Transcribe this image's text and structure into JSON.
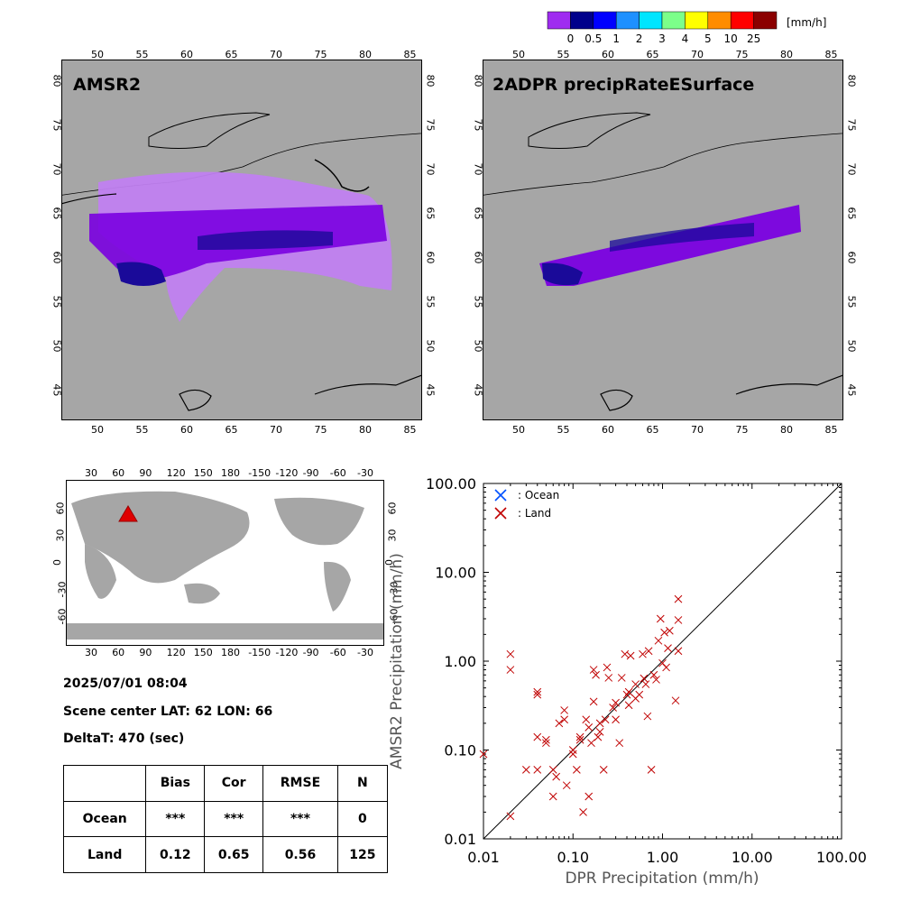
{
  "colorbar": {
    "unit": "[mm/h]",
    "labels": [
      "0",
      "0.5",
      "1",
      "2",
      "3",
      "4",
      "5",
      "10",
      "25"
    ],
    "colors": [
      "#9f2cf0",
      "#00008b",
      "#0000ff",
      "#1e90ff",
      "#00e5ff",
      "#7cff8a",
      "#ffff00",
      "#ff8c00",
      "#ff0000",
      "#8b0000"
    ]
  },
  "maps": {
    "left_title": "AMSR2",
    "right_title": "2ADPR precipRateESurface",
    "lon_ticks": [
      "50",
      "55",
      "60",
      "65",
      "70",
      "75",
      "80",
      "85"
    ],
    "lat_ticks": [
      "45",
      "50",
      "55",
      "60",
      "65",
      "70",
      "75",
      "80"
    ]
  },
  "world_map": {
    "lon_ticks": [
      "30",
      "60",
      "90",
      "120",
      "150",
      "180",
      "-150",
      "-120",
      "-90",
      "-60",
      "-30"
    ],
    "lat_ticks": [
      "60",
      "30",
      "0",
      "-30",
      "-60"
    ],
    "marker": "red triangle"
  },
  "info": {
    "datetime": "2025/07/01 08:04",
    "scene_center": "Scene center LAT: 62   LON:  66",
    "deltat": "DeltaT:  470 (sec)"
  },
  "stats_table": {
    "headers": [
      "",
      "Bias",
      "Cor",
      "RMSE",
      "N"
    ],
    "rows": [
      [
        "Ocean",
        "***",
        "***",
        "***",
        "0"
      ],
      [
        "Land",
        "0.12",
        "0.65",
        "0.56",
        "125"
      ]
    ]
  },
  "chart_data": {
    "type": "scatter",
    "xlabel": "DPR Precipitation (mm/h)",
    "ylabel": "AMSR2 Precipitation (mm/h)",
    "xscale": "log",
    "yscale": "log",
    "xlim": [
      0.01,
      100
    ],
    "ylim": [
      0.01,
      100
    ],
    "x_tick_labels": [
      "0.01",
      "0.10",
      "1.00",
      "10.00",
      "100.00"
    ],
    "y_tick_labels": [
      "0.01",
      "0.10",
      "1.00",
      "10.00",
      "100.00"
    ],
    "legend_position": "top-left",
    "series": [
      {
        "name": ": Ocean",
        "color": "#0050ff",
        "points": []
      },
      {
        "name": ": Land",
        "color": "#c00000",
        "points": [
          [
            0.01,
            0.09
          ],
          [
            0.02,
            0.018
          ],
          [
            0.02,
            1.2
          ],
          [
            0.02,
            0.8
          ],
          [
            0.03,
            0.06
          ],
          [
            0.04,
            0.06
          ],
          [
            0.04,
            0.45
          ],
          [
            0.04,
            0.42
          ],
          [
            0.04,
            0.14
          ],
          [
            0.05,
            0.12
          ],
          [
            0.05,
            0.13
          ],
          [
            0.06,
            0.06
          ],
          [
            0.06,
            0.03
          ],
          [
            0.065,
            0.05
          ],
          [
            0.07,
            0.2
          ],
          [
            0.08,
            0.28
          ],
          [
            0.08,
            0.22
          ],
          [
            0.085,
            0.04
          ],
          [
            0.1,
            0.1
          ],
          [
            0.1,
            0.09
          ],
          [
            0.11,
            0.06
          ],
          [
            0.12,
            0.14
          ],
          [
            0.12,
            0.13
          ],
          [
            0.13,
            0.02
          ],
          [
            0.14,
            0.22
          ],
          [
            0.15,
            0.18
          ],
          [
            0.15,
            0.03
          ],
          [
            0.16,
            0.12
          ],
          [
            0.17,
            0.8
          ],
          [
            0.17,
            0.35
          ],
          [
            0.18,
            0.7
          ],
          [
            0.19,
            0.14
          ],
          [
            0.2,
            0.16
          ],
          [
            0.2,
            0.2
          ],
          [
            0.22,
            0.06
          ],
          [
            0.23,
            0.22
          ],
          [
            0.24,
            0.85
          ],
          [
            0.25,
            0.65
          ],
          [
            0.28,
            0.3
          ],
          [
            0.3,
            0.34
          ],
          [
            0.3,
            0.22
          ],
          [
            0.33,
            0.12
          ],
          [
            0.35,
            0.65
          ],
          [
            0.38,
            1.2
          ],
          [
            0.4,
            0.42
          ],
          [
            0.42,
            0.45
          ],
          [
            0.42,
            0.32
          ],
          [
            0.44,
            1.15
          ],
          [
            0.5,
            0.55
          ],
          [
            0.5,
            0.38
          ],
          [
            0.55,
            0.42
          ],
          [
            0.6,
            1.2
          ],
          [
            0.62,
            0.64
          ],
          [
            0.65,
            0.55
          ],
          [
            0.68,
            0.24
          ],
          [
            0.7,
            1.3
          ],
          [
            0.75,
            0.06
          ],
          [
            0.8,
            0.7
          ],
          [
            0.85,
            0.62
          ],
          [
            0.9,
            1.7
          ],
          [
            0.95,
            3.0
          ],
          [
            1.0,
            0.95
          ],
          [
            1.05,
            2.1
          ],
          [
            1.1,
            0.85
          ],
          [
            1.15,
            1.4
          ],
          [
            1.2,
            2.2
          ],
          [
            1.4,
            0.36
          ],
          [
            1.5,
            1.3
          ],
          [
            1.5,
            2.9
          ],
          [
            1.5,
            5.0
          ]
        ]
      }
    ]
  }
}
